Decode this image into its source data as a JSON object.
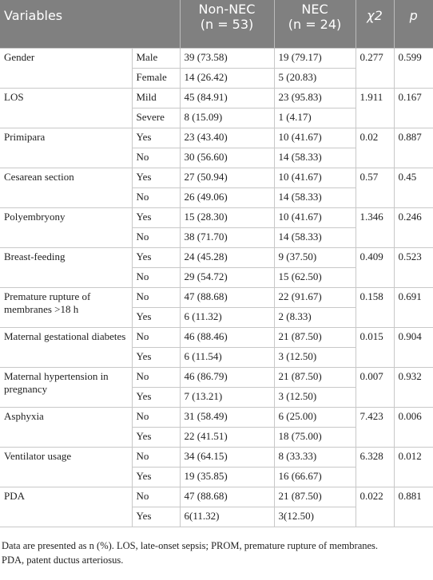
{
  "header": {
    "variables": "Variables",
    "non_nec": "Non-NEC",
    "non_nec_n": "(n = 53)",
    "nec": "NEC",
    "nec_n": "(n = 24)",
    "chi2": "χ2",
    "p": "p"
  },
  "groups": [
    {
      "variable": "Gender",
      "rows": [
        [
          "Male",
          "39 (73.58)",
          "19 (79.17)"
        ],
        [
          "Female",
          "14 (26.42)",
          "5 (20.83)"
        ]
      ],
      "chi2": "0.277",
      "p": "0.599"
    },
    {
      "variable": "LOS",
      "rows": [
        [
          "Mild",
          "45 (84.91)",
          "23 (95.83)"
        ],
        [
          "Severe",
          "8 (15.09)",
          "1 (4.17)"
        ]
      ],
      "chi2": "1.911",
      "p": "0.167"
    },
    {
      "variable": "Primipara",
      "rows": [
        [
          "Yes",
          "23 (43.40)",
          "10 (41.67)"
        ],
        [
          "No",
          "30 (56.60)",
          "14 (58.33)"
        ]
      ],
      "chi2": "0.02",
      "p": "0.887"
    },
    {
      "variable": "Cesarean section",
      "rows": [
        [
          "Yes",
          "27 (50.94)",
          "10 (41.67)"
        ],
        [
          "No",
          "26 (49.06)",
          "14 (58.33)"
        ]
      ],
      "chi2": "0.57",
      "p": "0.45"
    },
    {
      "variable": "Polyembryony",
      "rows": [
        [
          "Yes",
          "15 (28.30)",
          "10 (41.67)"
        ],
        [
          "No",
          "38 (71.70)",
          "14 (58.33)"
        ]
      ],
      "chi2": "1.346",
      "p": "0.246"
    },
    {
      "variable": "Breast-feeding",
      "rows": [
        [
          "Yes",
          "24 (45.28)",
          "9 (37.50)"
        ],
        [
          "No",
          "29 (54.72)",
          "15 (62.50)"
        ]
      ],
      "chi2": "0.409",
      "p": "0.523"
    },
    {
      "variable": "Premature rupture of membranes >18 h",
      "rows": [
        [
          "No",
          "47 (88.68)",
          "22 (91.67)"
        ],
        [
          "Yes",
          "6 (11.32)",
          "2 (8.33)"
        ]
      ],
      "chi2": "0.158",
      "p": "0.691"
    },
    {
      "variable": "Maternal gestational diabetes",
      "rows": [
        [
          "No",
          "46 (88.46)",
          "21 (87.50)"
        ],
        [
          "Yes",
          "6 (11.54)",
          "3 (12.50)"
        ]
      ],
      "chi2": "0.015",
      "p": "0.904"
    },
    {
      "variable": "Maternal hypertension in pregnancy",
      "rows": [
        [
          "No",
          "46 (86.79)",
          "21 (87.50)"
        ],
        [
          "Yes",
          "7 (13.21)",
          "3 (12.50)"
        ]
      ],
      "chi2": "0.007",
      "p": "0.932"
    },
    {
      "variable": "Asphyxia",
      "rows": [
        [
          "No",
          "31 (58.49)",
          "6 (25.00)"
        ],
        [
          "Yes",
          "22 (41.51)",
          "18 (75.00)"
        ]
      ],
      "chi2": "7.423",
      "p": "0.006"
    },
    {
      "variable": "Ventilator usage",
      "rows": [
        [
          "No",
          "34 (64.15)",
          "8 (33.33)"
        ],
        [
          "Yes",
          "19 (35.85)",
          "16 (66.67)"
        ]
      ],
      "chi2": "6.328",
      "p": "0.012"
    },
    {
      "variable": "PDA",
      "rows": [
        [
          "No",
          "47 (88.68)",
          "21 (87.50)"
        ],
        [
          "Yes",
          "6(11.32)",
          "3(12.50)"
        ]
      ],
      "chi2": "0.022",
      "p": "0.881"
    }
  ],
  "footnotes": [
    "Data are presented as n (%). LOS, late-onset sepsis; PROM, premature rupture of membranes.",
    "PDA, patent ductus arteriosus."
  ]
}
